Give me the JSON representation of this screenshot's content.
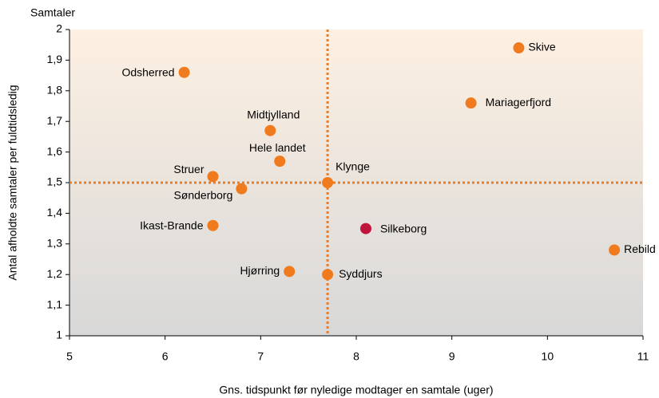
{
  "chart_data": {
    "type": "scatter",
    "y_unit_label": "Samtaler",
    "xlabel": "Gns. tidspunkt før nyledige modtager en samtale (uger)",
    "ylabel": "Antal afholdte samtaler per fuldtidsledig",
    "points": [
      {
        "label": "Odsherred",
        "x": 6.2,
        "y": 1.86,
        "color": "#f07b1e"
      },
      {
        "label": "Skive",
        "x": 9.7,
        "y": 1.94,
        "color": "#f07b1e"
      },
      {
        "label": "Mariagerfjord",
        "x": 9.2,
        "y": 1.76,
        "color": "#f07b1e"
      },
      {
        "label": "Midtjylland",
        "x": 7.1,
        "y": 1.67,
        "color": "#f07b1e"
      },
      {
        "label": "Hele landet",
        "x": 7.2,
        "y": 1.57,
        "color": "#f07b1e"
      },
      {
        "label": "Struer",
        "x": 6.5,
        "y": 1.52,
        "color": "#f07b1e"
      },
      {
        "label": "Klynge",
        "x": 7.7,
        "y": 1.5,
        "color": "#f07b1e"
      },
      {
        "label": "Sønderborg",
        "x": 6.8,
        "y": 1.48,
        "color": "#f07b1e"
      },
      {
        "label": "Ikast-Brande",
        "x": 6.5,
        "y": 1.36,
        "color": "#f07b1e"
      },
      {
        "label": "Silkeborg",
        "x": 8.1,
        "y": 1.35,
        "color": "#c0143c"
      },
      {
        "label": "Rebild",
        "x": 10.7,
        "y": 1.28,
        "color": "#f07b1e"
      },
      {
        "label": "Hjørring",
        "x": 7.3,
        "y": 1.21,
        "color": "#f07b1e"
      },
      {
        "label": "Syddjurs",
        "x": 7.7,
        "y": 1.2,
        "color": "#f07b1e"
      }
    ],
    "reference_lines": {
      "x": 7.7,
      "y": 1.5,
      "color": "#f07b1e"
    },
    "xlim": [
      5,
      11
    ],
    "xticks": [
      5,
      6,
      7,
      8,
      9,
      10,
      11
    ],
    "ylim": [
      1,
      2
    ],
    "yticks": [
      1,
      {
        "value": 1.1,
        "label": "1,1"
      },
      {
        "value": 1.2,
        "label": "1,2"
      },
      {
        "value": 1.3,
        "label": "1,3"
      },
      {
        "value": 1.4,
        "label": "1,4"
      },
      {
        "value": 1.5,
        "label": "1,5"
      },
      {
        "value": 1.6,
        "label": "1,6"
      },
      {
        "value": 1.7,
        "label": "1,7"
      },
      {
        "value": 1.8,
        "label": "1,8"
      },
      {
        "value": 1.9,
        "label": "1,9"
      },
      2
    ]
  }
}
